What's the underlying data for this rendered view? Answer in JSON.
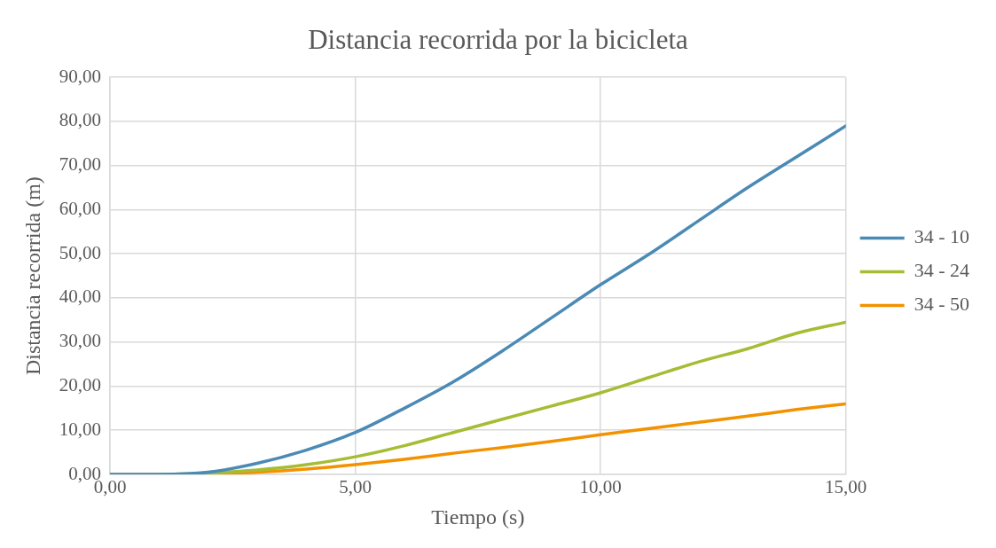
{
  "chart_data": {
    "type": "line",
    "title": "Distancia recorrida por la bicicleta",
    "xlabel": "Tiempo (s)",
    "ylabel": "Distancia recorrida (m)",
    "x": [
      0,
      1,
      2,
      3,
      4,
      5,
      6,
      7,
      8,
      9,
      10,
      11,
      12,
      13,
      14,
      15
    ],
    "series": [
      {
        "name": "34 - 10",
        "color": "#4a8ab5",
        "values": [
          0,
          0,
          0.5,
          2.5,
          5.5,
          9.5,
          15,
          21,
          28,
          35.5,
          43,
          50,
          57.5,
          65,
          72,
          79
        ]
      },
      {
        "name": "34 - 24",
        "color": "#a5bd34",
        "values": [
          0,
          0,
          0.3,
          1,
          2.2,
          4,
          6.5,
          9.5,
          12.5,
          15.5,
          18.5,
          22,
          25.5,
          28.5,
          32,
          34.5
        ]
      },
      {
        "name": "34 - 50",
        "color": "#f39200",
        "values": [
          0,
          0,
          0.1,
          0.5,
          1.2,
          2.2,
          3.4,
          4.8,
          6.1,
          7.5,
          9,
          10.4,
          11.8,
          13.2,
          14.7,
          16
        ]
      }
    ],
    "xlim": [
      0,
      15
    ],
    "xticks": [
      {
        "value": 0,
        "label": "0,00"
      },
      {
        "value": 5,
        "label": "5,00"
      },
      {
        "value": 10,
        "label": "10,00"
      },
      {
        "value": 15,
        "label": "15,00"
      }
    ],
    "ylim": [
      0,
      90
    ],
    "yticks": [
      {
        "value": 0,
        "label": "0,00"
      },
      {
        "value": 10,
        "label": "10,00"
      },
      {
        "value": 20,
        "label": "20,00"
      },
      {
        "value": 30,
        "label": "30,00"
      },
      {
        "value": 40,
        "label": "40,00"
      },
      {
        "value": 50,
        "label": "50,00"
      },
      {
        "value": 60,
        "label": "60,00"
      },
      {
        "value": 70,
        "label": "70,00"
      },
      {
        "value": 80,
        "label": "80,00"
      },
      {
        "value": 90,
        "label": "90,00"
      }
    ],
    "grid": true,
    "legend": "right",
    "marker": "none",
    "line_style": "solid"
  }
}
